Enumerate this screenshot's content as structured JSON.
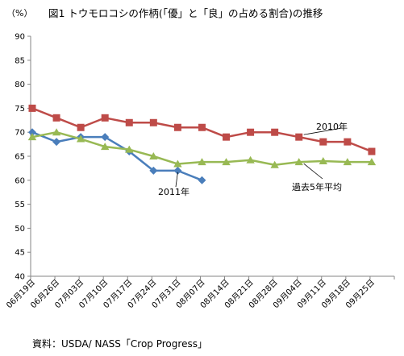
{
  "title": "図1 トウモロコシの作柄(「優」と「良」の占める割合)の推移",
  "unit_label": "（%）",
  "source_note": "資料：USDA/ NASS「Crop Progress」",
  "colors": {
    "series_2011": "#4a7ebb",
    "series_2010": "#be4b48",
    "series_5yr": "#98b954",
    "axis": "#868686"
  },
  "chart_data": {
    "type": "line",
    "title": "図1 トウモロコシの作柄(「優」と「良」の占める割合)の推移",
    "ylabel": "（%）",
    "xlabel": "",
    "ylim": [
      40,
      90
    ],
    "yticks": [
      40,
      45,
      50,
      55,
      60,
      65,
      70,
      75,
      80,
      85,
      90
    ],
    "grid": false,
    "legend": "inline labels",
    "categories": [
      "06月19日",
      "06月26日",
      "07月03日",
      "07月10日",
      "07月17日",
      "07月24日",
      "07月31日",
      "08月07日",
      "08月14日",
      "08月21日",
      "08月28日",
      "09月04日",
      "09月11日",
      "09月18日",
      "09月25日"
    ],
    "series": [
      {
        "name": "2011年",
        "marker": "diamond",
        "color": "#4a7ebb",
        "values": [
          70,
          68,
          69,
          69,
          66,
          62,
          62,
          60,
          null,
          null,
          null,
          null,
          null,
          null,
          null
        ]
      },
      {
        "name": "2010年",
        "marker": "square",
        "color": "#be4b48",
        "values": [
          75,
          73,
          71,
          73,
          72,
          72,
          71,
          71,
          69,
          70,
          70,
          69,
          68,
          68,
          66
        ]
      },
      {
        "name": "過去5年平均",
        "marker": "triangle",
        "color": "#98b954",
        "values": [
          69,
          70,
          68.6,
          67,
          66.4,
          65,
          63.4,
          63.8,
          63.8,
          64.2,
          63.2,
          63.8,
          64,
          63.8,
          63.8
        ]
      }
    ]
  }
}
